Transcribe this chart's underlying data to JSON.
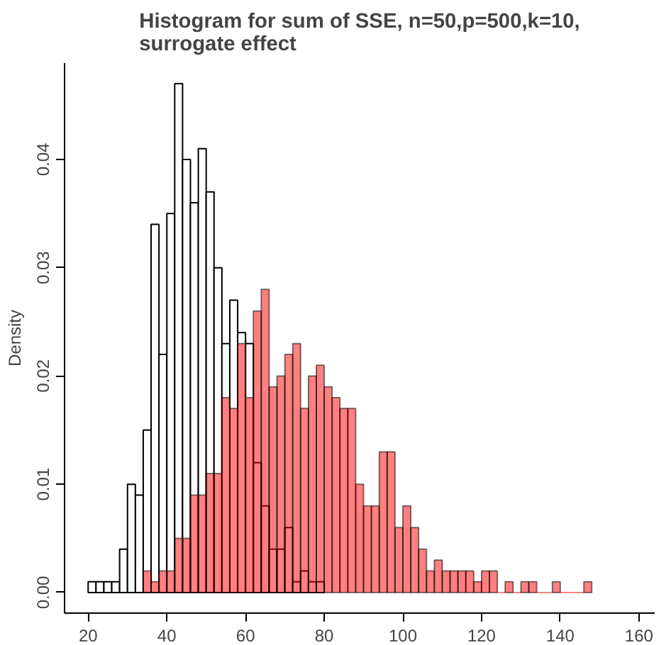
{
  "chart_data": {
    "type": "histogram",
    "title": "Histogram for sum of SSE, n=50,p=500,k=10,\nsurrogate effect",
    "ylabel": "Density",
    "xlim": [
      14,
      164
    ],
    "ylim": [
      -0.0019,
      0.0489
    ],
    "xticks": [
      20,
      40,
      60,
      80,
      100,
      120,
      140,
      160
    ],
    "yticks": [
      {
        "value": 0,
        "label": "0.00"
      },
      {
        "value": 0.01,
        "label": "0.01"
      },
      {
        "value": 0.02,
        "label": "0.02"
      },
      {
        "value": 0.03,
        "label": "0.03"
      },
      {
        "value": 0.04,
        "label": "0.04"
      }
    ],
    "grid": false,
    "bins": [
      20,
      22,
      24,
      26,
      28,
      30,
      32,
      34,
      36,
      38,
      40,
      42,
      44,
      46,
      48,
      50,
      52,
      54,
      56,
      58,
      60,
      62,
      64,
      66,
      68,
      70,
      72,
      74,
      76,
      78,
      80,
      82,
      84,
      86,
      88,
      90,
      92,
      94,
      96,
      98,
      100,
      102,
      104,
      106,
      108,
      110,
      112,
      114,
      116,
      118,
      120,
      122,
      124,
      126,
      128,
      130,
      132,
      134,
      136,
      138,
      140,
      142,
      144,
      146,
      148
    ],
    "series": [
      {
        "color": "#ffffff",
        "values": [
          0.001,
          0.001,
          0.001,
          0.001,
          0.004,
          0.01,
          0.009,
          0.015,
          0.034,
          0.022,
          0.035,
          0.047,
          0.04,
          0.036,
          0.041,
          0.037,
          0.03,
          0.023,
          0.027,
          0.024,
          0.023,
          0.012,
          0.008,
          0.004,
          0.004,
          0.006,
          0.001,
          0.002,
          0.001,
          0.001,
          null,
          null,
          null,
          null,
          null,
          null,
          null,
          null,
          null,
          null,
          null,
          null,
          null,
          null,
          null,
          null,
          null,
          null,
          null,
          null,
          null,
          null,
          null,
          null,
          null,
          null,
          null,
          null,
          null,
          null,
          null,
          null,
          null,
          null
        ]
      },
      {
        "color": "#ff8080",
        "values": [
          null,
          null,
          null,
          null,
          null,
          null,
          null,
          0.002,
          0.001,
          0.002,
          0.002,
          0.005,
          0.005,
          0.009,
          0.009,
          0.011,
          0.011,
          0.018,
          0.017,
          0.023,
          0.018,
          0.026,
          0.028,
          0.019,
          0.02,
          0.022,
          0.023,
          0.017,
          0.02,
          0.021,
          0.019,
          0.018,
          0.017,
          0.017,
          0.01,
          0.008,
          0.008,
          0.013,
          0.013,
          0.006,
          0.008,
          0.006,
          0.004,
          0.002,
          0.003,
          0.002,
          0.002,
          0.002,
          0.002,
          0.001,
          0.002,
          0.002,
          0,
          0.001,
          0,
          0.001,
          0.001,
          0,
          0,
          0.001,
          0,
          0,
          0,
          0.001
        ]
      }
    ]
  }
}
